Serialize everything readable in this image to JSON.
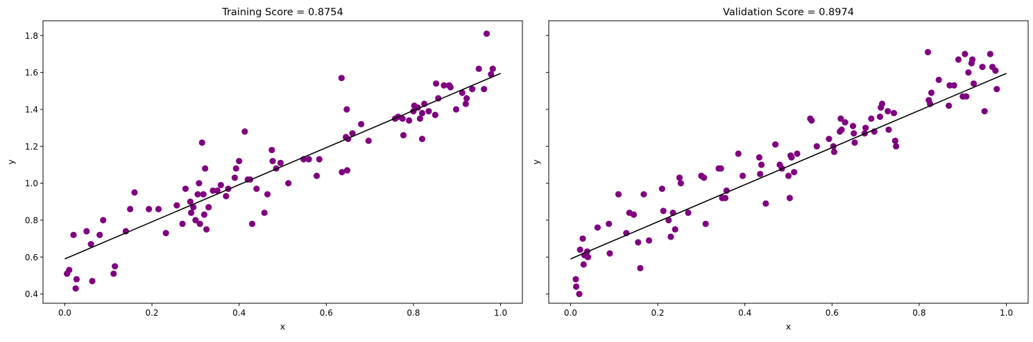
{
  "chart_data": [
    {
      "type": "scatter",
      "title": "Training Score = 0.8754",
      "xlabel": "x",
      "ylabel": "y",
      "xlim": [
        -0.05,
        1.05
      ],
      "ylim": [
        0.35,
        1.88
      ],
      "xticks": [
        0.0,
        0.2,
        0.4,
        0.6,
        0.8,
        1.0
      ],
      "xtick_labels": [
        "0.0",
        "0.2",
        "0.4",
        "0.6",
        "0.8",
        "1.0"
      ],
      "yticks": [
        0.4,
        0.6,
        0.8,
        1.0,
        1.2,
        1.4,
        1.6,
        1.8
      ],
      "ytick_labels": [
        "0.4",
        "0.6",
        "0.8",
        "1.0",
        "1.2",
        "1.4",
        "1.6",
        "1.8"
      ],
      "show_yticklabels": true,
      "grid": false,
      "point_color": "#800080",
      "line_color": "#000000",
      "fit_line": {
        "x": [
          0.0,
          1.0
        ],
        "y": [
          0.59,
          1.595
        ]
      },
      "points": [
        [
          0.005,
          0.51
        ],
        [
          0.01,
          0.53
        ],
        [
          0.02,
          0.72
        ],
        [
          0.025,
          0.43
        ],
        [
          0.027,
          0.48
        ],
        [
          0.05,
          0.74
        ],
        [
          0.06,
          0.67
        ],
        [
          0.063,
          0.47
        ],
        [
          0.08,
          0.72
        ],
        [
          0.088,
          0.8
        ],
        [
          0.112,
          0.51
        ],
        [
          0.115,
          0.55
        ],
        [
          0.14,
          0.74
        ],
        [
          0.15,
          0.86
        ],
        [
          0.16,
          0.95
        ],
        [
          0.193,
          0.86
        ],
        [
          0.215,
          0.86
        ],
        [
          0.232,
          0.73
        ],
        [
          0.257,
          0.88
        ],
        [
          0.27,
          0.78
        ],
        [
          0.277,
          0.97
        ],
        [
          0.288,
          0.9
        ],
        [
          0.29,
          0.84
        ],
        [
          0.295,
          0.87
        ],
        [
          0.3,
          0.8
        ],
        [
          0.305,
          0.94
        ],
        [
          0.308,
          1.0
        ],
        [
          0.31,
          0.78
        ],
        [
          0.315,
          1.22
        ],
        [
          0.318,
          0.94
        ],
        [
          0.32,
          0.83
        ],
        [
          0.322,
          1.08
        ],
        [
          0.325,
          0.75
        ],
        [
          0.33,
          0.87
        ],
        [
          0.34,
          0.96
        ],
        [
          0.35,
          0.96
        ],
        [
          0.358,
          0.99
        ],
        [
          0.37,
          0.93
        ],
        [
          0.375,
          0.97
        ],
        [
          0.39,
          1.03
        ],
        [
          0.393,
          1.08
        ],
        [
          0.4,
          1.12
        ],
        [
          0.413,
          1.28
        ],
        [
          0.42,
          1.02
        ],
        [
          0.425,
          1.02
        ],
        [
          0.43,
          0.78
        ],
        [
          0.44,
          0.97
        ],
        [
          0.458,
          0.84
        ],
        [
          0.465,
          0.94
        ],
        [
          0.475,
          1.18
        ],
        [
          0.477,
          1.12
        ],
        [
          0.485,
          1.08
        ],
        [
          0.495,
          1.11
        ],
        [
          0.513,
          1.0
        ],
        [
          0.548,
          1.13
        ],
        [
          0.56,
          1.13
        ],
        [
          0.578,
          1.04
        ],
        [
          0.584,
          1.13
        ],
        [
          0.635,
          1.57
        ],
        [
          0.636,
          1.06
        ],
        [
          0.645,
          1.25
        ],
        [
          0.647,
          1.4
        ],
        [
          0.648,
          1.07
        ],
        [
          0.65,
          1.24
        ],
        [
          0.66,
          1.27
        ],
        [
          0.68,
          1.32
        ],
        [
          0.697,
          1.23
        ],
        [
          0.758,
          1.35
        ],
        [
          0.765,
          1.36
        ],
        [
          0.775,
          1.35
        ],
        [
          0.777,
          1.26
        ],
        [
          0.79,
          1.34
        ],
        [
          0.8,
          1.39
        ],
        [
          0.802,
          1.42
        ],
        [
          0.81,
          1.41
        ],
        [
          0.815,
          1.35
        ],
        [
          0.82,
          1.24
        ],
        [
          0.82,
          1.38
        ],
        [
          0.825,
          1.43
        ],
        [
          0.835,
          1.39
        ],
        [
          0.85,
          1.37
        ],
        [
          0.852,
          1.54
        ],
        [
          0.857,
          1.46
        ],
        [
          0.87,
          1.53
        ],
        [
          0.882,
          1.53
        ],
        [
          0.885,
          1.52
        ],
        [
          0.898,
          1.4
        ],
        [
          0.912,
          1.49
        ],
        [
          0.92,
          1.43
        ],
        [
          0.922,
          1.46
        ],
        [
          0.935,
          1.51
        ],
        [
          0.95,
          1.62
        ],
        [
          0.962,
          1.51
        ],
        [
          0.968,
          1.81
        ],
        [
          0.978,
          1.59
        ],
        [
          0.982,
          1.62
        ]
      ]
    },
    {
      "type": "scatter",
      "title": "Validation Score = 0.8974",
      "xlabel": "x",
      "ylabel": "y",
      "xlim": [
        -0.05,
        1.05
      ],
      "ylim": [
        0.35,
        1.88
      ],
      "xticks": [
        0.0,
        0.2,
        0.4,
        0.6,
        0.8,
        1.0
      ],
      "xtick_labels": [
        "0.0",
        "0.2",
        "0.4",
        "0.6",
        "0.8",
        "1.0"
      ],
      "yticks": [
        0.4,
        0.6,
        0.8,
        1.0,
        1.2,
        1.4,
        1.6,
        1.8
      ],
      "ytick_labels": [],
      "show_yticklabels": false,
      "grid": false,
      "point_color": "#800080",
      "line_color": "#000000",
      "fit_line": {
        "x": [
          0.0,
          1.0
        ],
        "y": [
          0.59,
          1.595
        ]
      },
      "points": [
        [
          0.012,
          0.48
        ],
        [
          0.013,
          0.44
        ],
        [
          0.02,
          0.4
        ],
        [
          0.022,
          0.64
        ],
        [
          0.028,
          0.7
        ],
        [
          0.03,
          0.56
        ],
        [
          0.032,
          0.61
        ],
        [
          0.038,
          0.63
        ],
        [
          0.04,
          0.6
        ],
        [
          0.062,
          0.76
        ],
        [
          0.088,
          0.78
        ],
        [
          0.09,
          0.62
        ],
        [
          0.11,
          0.94
        ],
        [
          0.128,
          0.73
        ],
        [
          0.135,
          0.84
        ],
        [
          0.145,
          0.83
        ],
        [
          0.155,
          0.68
        ],
        [
          0.16,
          0.54
        ],
        [
          0.168,
          0.94
        ],
        [
          0.18,
          0.69
        ],
        [
          0.21,
          0.97
        ],
        [
          0.213,
          0.85
        ],
        [
          0.225,
          0.8
        ],
        [
          0.23,
          0.71
        ],
        [
          0.235,
          0.84
        ],
        [
          0.24,
          0.75
        ],
        [
          0.25,
          1.03
        ],
        [
          0.253,
          1.0
        ],
        [
          0.27,
          0.84
        ],
        [
          0.3,
          1.04
        ],
        [
          0.306,
          1.03
        ],
        [
          0.31,
          0.78
        ],
        [
          0.34,
          1.08
        ],
        [
          0.345,
          1.08
        ],
        [
          0.348,
          0.92
        ],
        [
          0.355,
          0.92
        ],
        [
          0.358,
          0.96
        ],
        [
          0.385,
          1.16
        ],
        [
          0.395,
          1.04
        ],
        [
          0.433,
          1.14
        ],
        [
          0.435,
          1.05
        ],
        [
          0.438,
          1.1
        ],
        [
          0.448,
          0.89
        ],
        [
          0.47,
          1.21
        ],
        [
          0.48,
          1.1
        ],
        [
          0.485,
          1.08
        ],
        [
          0.5,
          1.04
        ],
        [
          0.503,
          0.92
        ],
        [
          0.505,
          1.15
        ],
        [
          0.507,
          1.14
        ],
        [
          0.513,
          1.06
        ],
        [
          0.52,
          1.16
        ],
        [
          0.55,
          1.35
        ],
        [
          0.553,
          1.34
        ],
        [
          0.565,
          1.2
        ],
        [
          0.593,
          1.24
        ],
        [
          0.603,
          1.2
        ],
        [
          0.605,
          1.17
        ],
        [
          0.618,
          1.28
        ],
        [
          0.62,
          1.35
        ],
        [
          0.622,
          1.29
        ],
        [
          0.63,
          1.33
        ],
        [
          0.648,
          1.31
        ],
        [
          0.65,
          1.27
        ],
        [
          0.652,
          1.22
        ],
        [
          0.675,
          1.27
        ],
        [
          0.677,
          1.3
        ],
        [
          0.69,
          1.35
        ],
        [
          0.697,
          1.28
        ],
        [
          0.71,
          1.36
        ],
        [
          0.712,
          1.41
        ],
        [
          0.715,
          1.43
        ],
        [
          0.728,
          1.39
        ],
        [
          0.73,
          1.29
        ],
        [
          0.742,
          1.38
        ],
        [
          0.745,
          1.23
        ],
        [
          0.747,
          1.2
        ],
        [
          0.82,
          1.71
        ],
        [
          0.822,
          1.45
        ],
        [
          0.825,
          1.43
        ],
        [
          0.828,
          1.49
        ],
        [
          0.845,
          1.56
        ],
        [
          0.868,
          1.42
        ],
        [
          0.87,
          1.53
        ],
        [
          0.88,
          1.53
        ],
        [
          0.89,
          1.67
        ],
        [
          0.9,
          1.47
        ],
        [
          0.905,
          1.7
        ],
        [
          0.908,
          1.47
        ],
        [
          0.913,
          1.6
        ],
        [
          0.92,
          1.65
        ],
        [
          0.922,
          1.67
        ],
        [
          0.925,
          1.54
        ],
        [
          0.945,
          1.63
        ],
        [
          0.95,
          1.39
        ],
        [
          0.963,
          1.7
        ],
        [
          0.968,
          1.63
        ],
        [
          0.975,
          1.61
        ],
        [
          0.978,
          1.51
        ]
      ]
    }
  ]
}
